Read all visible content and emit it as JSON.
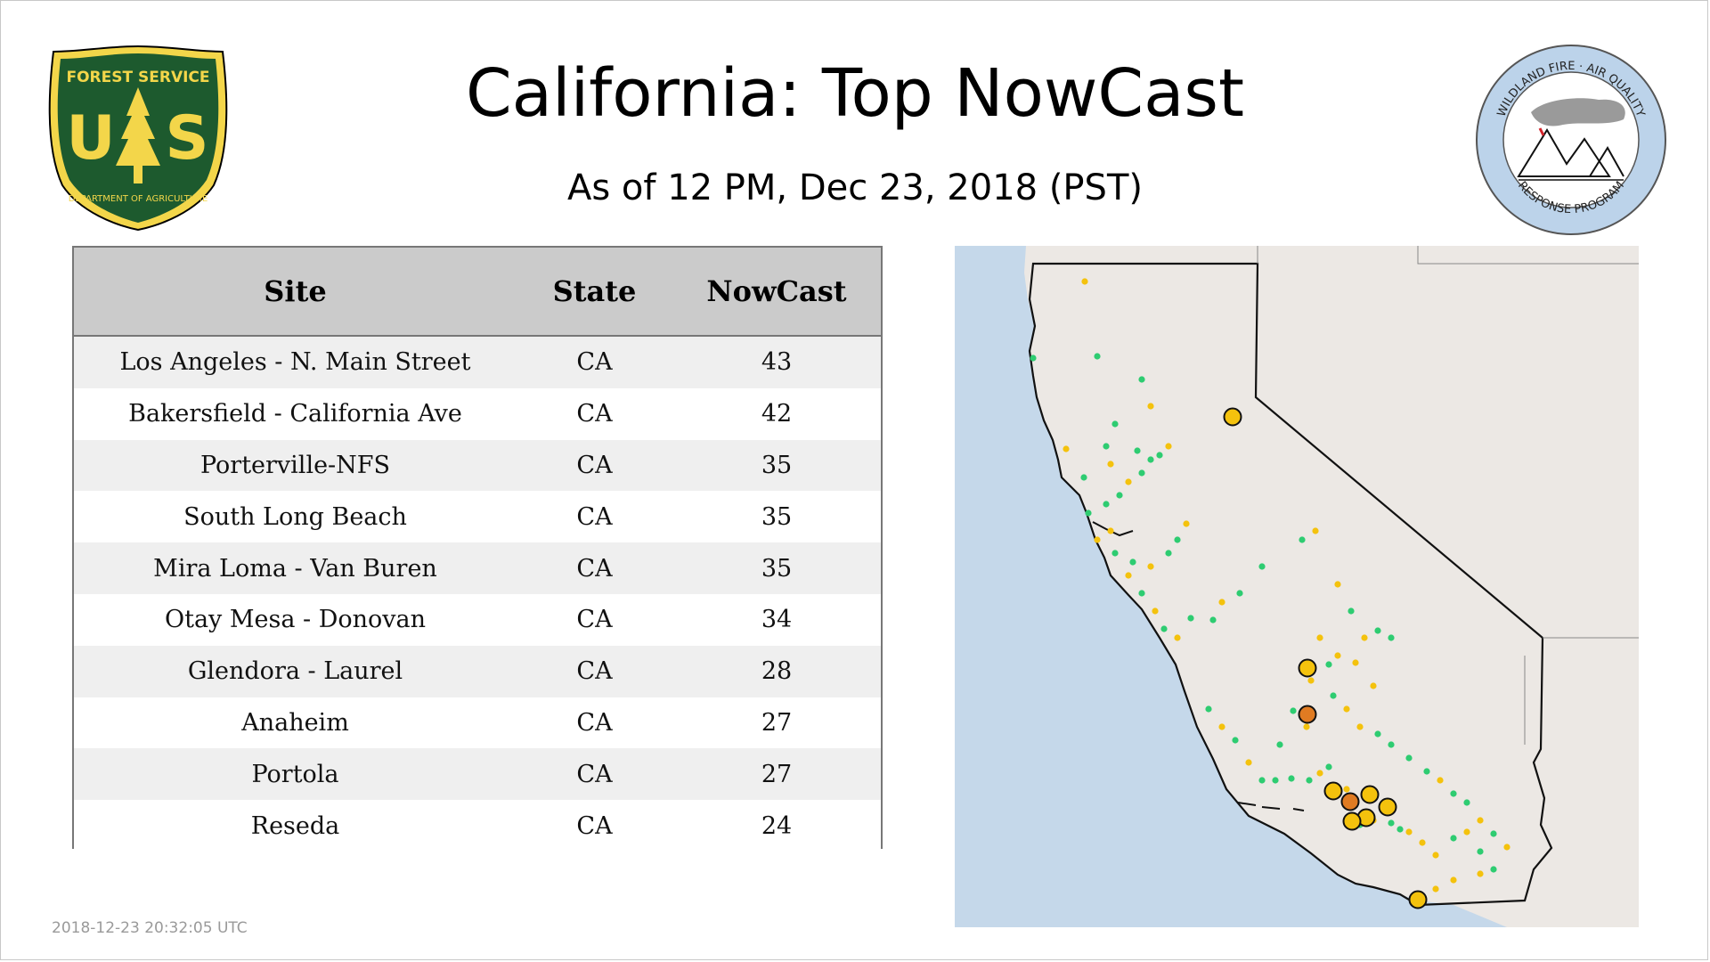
{
  "header": {
    "title": "California: Top NowCast",
    "subtitle": "As of 12 PM, Dec 23, 2018 (PST)"
  },
  "logos": {
    "left": {
      "top_text": "FOREST SERVICE",
      "letters": "U S",
      "bottom_text": "DEPARTMENT OF AGRICULTURE"
    },
    "right": {
      "ring_top": "WILDLAND FIRE · AIR QUALITY",
      "ring_bottom": "RESPONSE PROGRAM"
    }
  },
  "table": {
    "headers": [
      "Site",
      "State",
      "NowCast"
    ],
    "rows": [
      [
        "Los Angeles - N. Main Street",
        "CA",
        "43"
      ],
      [
        "Bakersfield - California Ave",
        "CA",
        "42"
      ],
      [
        "Porterville-NFS",
        "CA",
        "35"
      ],
      [
        "South Long Beach",
        "CA",
        "35"
      ],
      [
        "Mira Loma - Van Buren",
        "CA",
        "35"
      ],
      [
        "Otay Mesa - Donovan",
        "CA",
        "34"
      ],
      [
        "Glendora - Laurel",
        "CA",
        "28"
      ],
      [
        "Anaheim",
        "CA",
        "27"
      ],
      [
        "Portola",
        "CA",
        "27"
      ],
      [
        "Reseda",
        "CA",
        "24"
      ]
    ]
  },
  "footer": {
    "timestamp": "2018-12-23 20:32:05 UTC"
  },
  "map": {
    "colors": {
      "ocean": "#c5d8ea",
      "land": "#ece8e4",
      "good": "#2ecc71",
      "moderate": "#f4c20d",
      "usg": "#e07b22"
    }
  }
}
